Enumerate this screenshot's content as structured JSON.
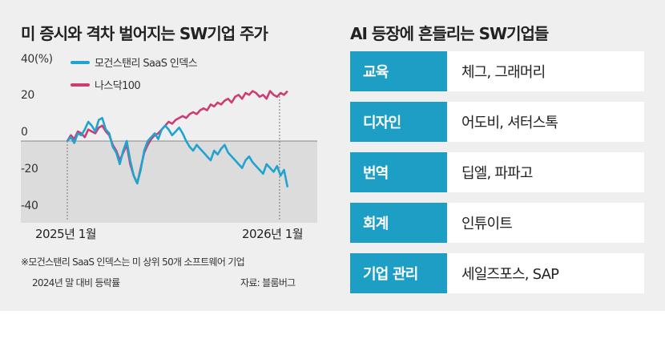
{
  "left_panel": {
    "title": "미 증시와 격차 벌어지는 SW기업 주가",
    "note_line1": "※모건스탠리 SaaS 인덱스는 미 상위 50개 소프트웨어 기업",
    "note_line2": "2024년 말 대비 등락률",
    "source": "자료: 블룸버그"
  },
  "right_panel": {
    "title": "AI 등장에 흔들리는 SW기업들",
    "rows": [
      {
        "category": "교육",
        "companies": "체그, 그래머리"
      },
      {
        "category": "디자인",
        "companies": "어도비, 셔터스톡"
      },
      {
        "category": "번역",
        "companies": "딥엘, 파파고"
      },
      {
        "category": "회계",
        "companies": "인튜이트"
      },
      {
        "category": "기업 관리",
        "companies": "세일즈포스, SAP"
      }
    ]
  },
  "colors": {
    "saas": "#1ea4cf",
    "nasdaq": "#cc3d73",
    "negative_fill": "#dcdcdc",
    "label_bg": "#1d9ec5"
  },
  "chart_data": {
    "type": "line",
    "y_unit": "(%)",
    "ylim": [
      -40,
      40
    ],
    "yticks": [
      "40(%)",
      "20",
      "0",
      "-20",
      "-40"
    ],
    "ytick_values": [
      40,
      20,
      0,
      -20,
      -40
    ],
    "xticks": [
      "2025년 1월",
      "2026년 1월"
    ],
    "xtick_values": [
      0,
      12
    ],
    "xlim": [
      0,
      13.2
    ],
    "grid": false,
    "legend_position": "top-left",
    "series": [
      {
        "name": "모건스탠리 SaaS 인덱스",
        "color": "#1ea4cf",
        "x": [
          0,
          0.2,
          0.4,
          0.6,
          0.8,
          1.0,
          1.2,
          1.4,
          1.6,
          1.8,
          2.0,
          2.2,
          2.4,
          2.6,
          2.8,
          3.0,
          3.2,
          3.4,
          3.6,
          3.8,
          4.0,
          4.2,
          4.4,
          4.6,
          4.8,
          5.0,
          5.2,
          5.4,
          5.6,
          5.8,
          6.0,
          6.2,
          6.4,
          6.6,
          6.8,
          7.0,
          7.2,
          7.4,
          7.6,
          7.8,
          8.0,
          8.2,
          8.4,
          8.6,
          8.8,
          9.0,
          9.2,
          9.4,
          9.6,
          9.8,
          10.0,
          10.2,
          10.4,
          10.6,
          10.8,
          11.0,
          11.2,
          11.4,
          11.6,
          11.8,
          12.0,
          12.2,
          12.4,
          12.6
        ],
        "values": [
          0,
          2,
          -1,
          4,
          3,
          6,
          10,
          8,
          5,
          11,
          12,
          6,
          4,
          -3,
          -6,
          -12,
          -5,
          0,
          -10,
          -18,
          -22,
          -15,
          -5,
          0,
          2,
          4,
          1,
          6,
          8,
          6,
          3,
          5,
          7,
          4,
          0,
          -3,
          -5,
          -2,
          -4,
          -6,
          -8,
          -10,
          -5,
          -7,
          -4,
          -2,
          -6,
          -8,
          -10,
          -12,
          -14,
          -10,
          -8,
          -11,
          -13,
          -15,
          -17,
          -12,
          -14,
          -16,
          -13,
          -18,
          -15,
          -24
        ]
      },
      {
        "name": "나스닥100",
        "color": "#cc3d73",
        "x": [
          0,
          0.2,
          0.4,
          0.6,
          0.8,
          1.0,
          1.2,
          1.4,
          1.6,
          1.8,
          2.0,
          2.2,
          2.4,
          2.6,
          2.8,
          3.0,
          3.2,
          3.4,
          3.6,
          3.8,
          4.0,
          4.2,
          4.4,
          4.6,
          4.8,
          5.0,
          5.2,
          5.4,
          5.6,
          5.8,
          6.0,
          6.2,
          6.4,
          6.6,
          6.8,
          7.0,
          7.2,
          7.4,
          7.6,
          7.8,
          8.0,
          8.2,
          8.4,
          8.6,
          8.8,
          9.0,
          9.2,
          9.4,
          9.6,
          9.8,
          10.0,
          10.2,
          10.4,
          10.6,
          10.8,
          11.0,
          11.2,
          11.4,
          11.6,
          11.8,
          12.0,
          12.2,
          12.4,
          12.6
        ],
        "values": [
          0,
          3,
          1,
          5,
          4,
          2,
          6,
          5,
          4,
          7,
          8,
          5,
          3,
          -2,
          -5,
          -10,
          -6,
          -2,
          -12,
          -18,
          -22,
          -14,
          -6,
          -2,
          1,
          3,
          4,
          6,
          8,
          10,
          9,
          11,
          12,
          13,
          12,
          14,
          15,
          14,
          16,
          17,
          16,
          19,
          18,
          20,
          19,
          21,
          22,
          20,
          23,
          24,
          22,
          25,
          24,
          26,
          25,
          23,
          24,
          22,
          26,
          24,
          23,
          25,
          24,
          26
        ]
      }
    ]
  }
}
